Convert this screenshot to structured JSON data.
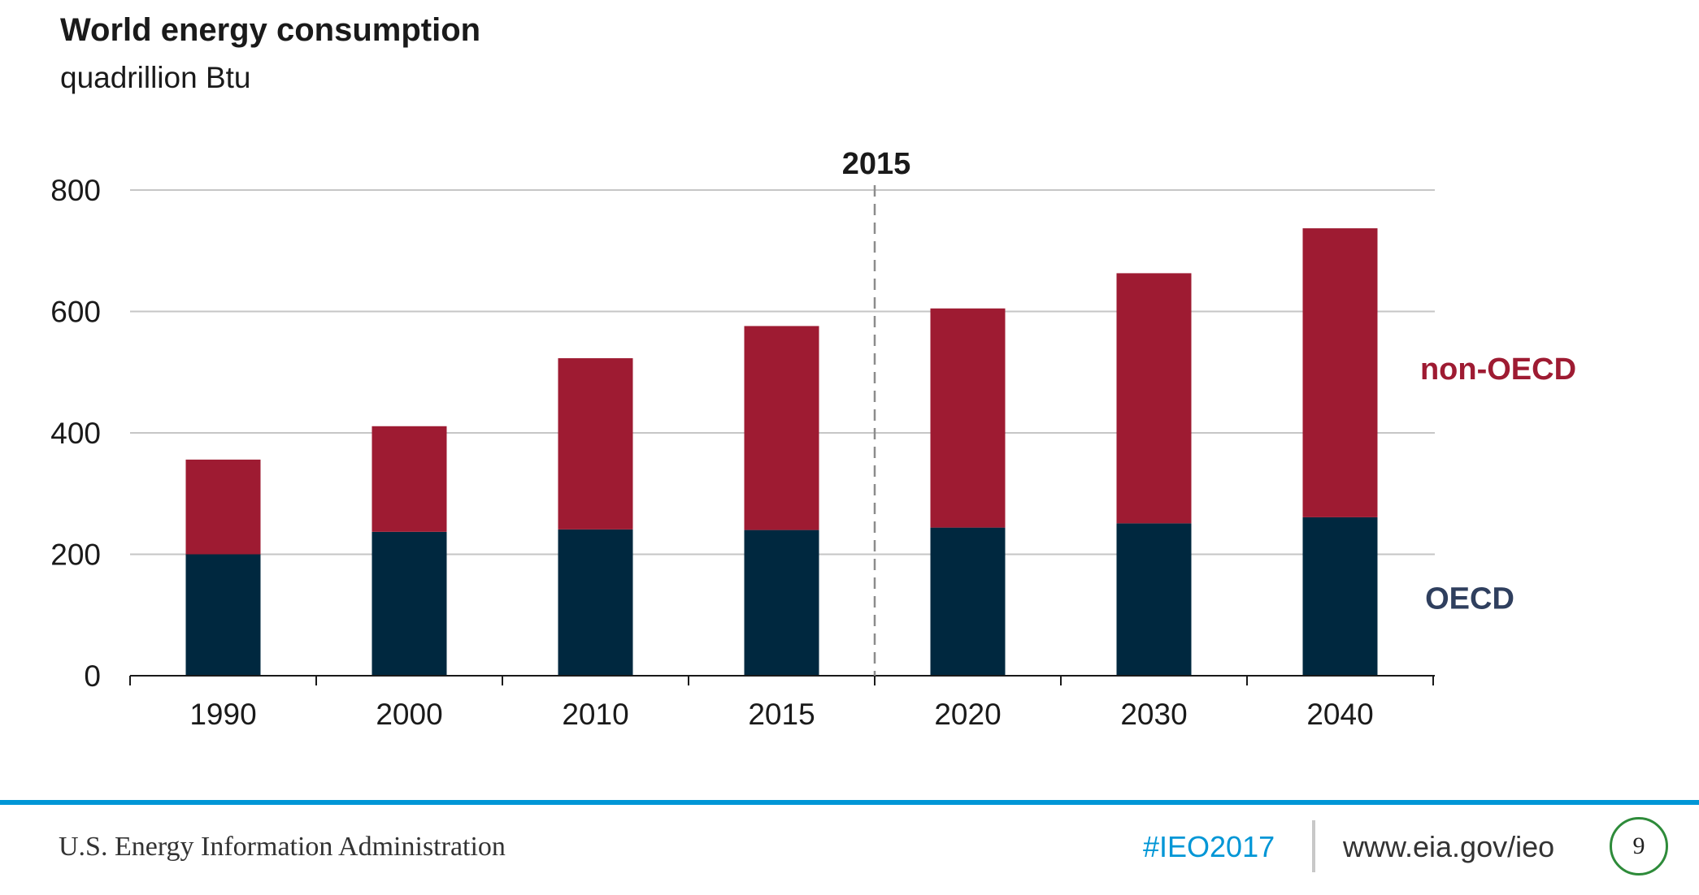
{
  "chart_data": {
    "type": "bar",
    "stacked": true,
    "title": "World energy consumption",
    "subtitle": "quadrillion Btu",
    "categories": [
      "1990",
      "2000",
      "2010",
      "2015",
      "2020",
      "2030",
      "2040"
    ],
    "series": [
      {
        "name": "OECD",
        "color": "#00283f",
        "label_color": "#2f3f5e",
        "values": [
          200,
          237,
          241,
          240,
          244,
          251,
          261
        ]
      },
      {
        "name": "non-OECD",
        "color": "#9e1b32",
        "label_color": "#9e1b32",
        "values": [
          156,
          174,
          282,
          336,
          361,
          412,
          476
        ]
      }
    ],
    "ylim": [
      0,
      800
    ],
    "yticks": [
      0,
      200,
      400,
      600,
      800
    ],
    "ytick_labels": [
      "0",
      "200",
      "400",
      "600",
      "800"
    ],
    "grid": true,
    "legend": "right, inline labels",
    "annotation": {
      "label": "2015",
      "line_style": "dashed",
      "between": [
        "2015",
        "2020"
      ]
    }
  },
  "footer": {
    "agency": "U.S. Energy Information Administration",
    "hashtag": "#IEO2017",
    "url": "www.eia.gov/ieo",
    "page_number": "9"
  }
}
